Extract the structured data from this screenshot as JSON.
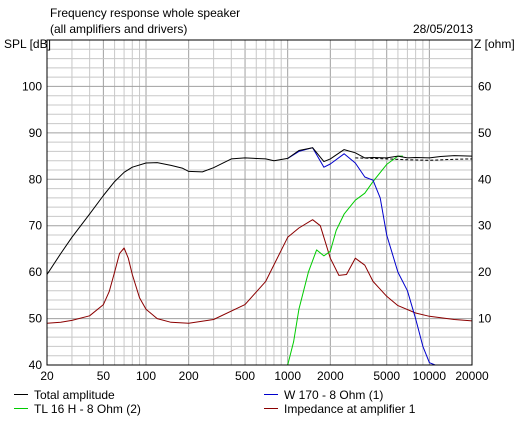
{
  "chart_data": {
    "type": "line",
    "title": "Frequency response whole speaker",
    "subtitle": "(all amplifiers and drivers)",
    "date": "28/05/2013",
    "ylabel_left": "SPL [dB]",
    "ylabel_right": "Z [ohm]",
    "x_scale": "log",
    "xlim": [
      20,
      20000
    ],
    "ylim_left": [
      40,
      110
    ],
    "ylim_right": [
      0,
      70
    ],
    "grid": true,
    "x_ticks": [
      20,
      50,
      100,
      200,
      500,
      1000,
      2000,
      5000,
      10000,
      20000
    ],
    "x_tick_labels": [
      "20",
      "50",
      "100",
      "200",
      "500",
      "1000",
      "2000",
      "5000",
      "10000",
      "20000"
    ],
    "y_left_ticks": [
      40,
      50,
      60,
      70,
      80,
      90,
      100
    ],
    "y_right_ticks": [
      10,
      20,
      30,
      40,
      50,
      60
    ],
    "series": [
      {
        "name": "Total amplitude",
        "color": "#000000",
        "axis": "left",
        "x": [
          20,
          25,
          30,
          40,
          50,
          60,
          70,
          80,
          100,
          120,
          150,
          180,
          200,
          250,
          300,
          400,
          500,
          700,
          800,
          1000,
          1200,
          1500,
          1800,
          2000,
          2500,
          3000,
          3500,
          4000,
          5000,
          6000,
          7000,
          8000,
          10000,
          12000,
          15000,
          20000
        ],
        "values": [
          59.5,
          64,
          67.5,
          72.5,
          76.5,
          79.5,
          81.5,
          82.6,
          83.5,
          83.6,
          83,
          82.4,
          81.7,
          81.6,
          82.5,
          84.4,
          84.6,
          84.4,
          84,
          84.5,
          86.2,
          86.8,
          83.8,
          84.4,
          86.4,
          85.7,
          84.6,
          84.7,
          84.6,
          85,
          84.6,
          84.7,
          84.6,
          84.9,
          85.1,
          85
        ]
      },
      {
        "name": "W 170 - 8 Ohm (1)",
        "color": "#0000cc",
        "axis": "left",
        "x": [
          1000,
          1200,
          1500,
          1800,
          2000,
          2500,
          3000,
          3500,
          4000,
          4500,
          5000,
          6000,
          7000,
          8000,
          9000,
          10000,
          11000,
          12000
        ],
        "values": [
          84.5,
          86,
          86.8,
          82.6,
          83.3,
          85.5,
          83.5,
          80.5,
          79.8,
          76,
          68,
          60,
          56,
          50,
          44,
          40.5,
          40,
          40
        ]
      },
      {
        "name": "TL 16 H - 8 Ohm (2)",
        "color": "#00cc00",
        "axis": "left",
        "x": [
          20,
          500,
          900,
          1000,
          1100,
          1200,
          1400,
          1600,
          1800,
          2000,
          2200,
          2500,
          3000,
          3500,
          4000,
          5000,
          6000,
          6500
        ],
        "values": [
          40,
          40,
          40,
          40,
          45,
          52,
          60,
          64.8,
          63.5,
          64.5,
          69,
          72.5,
          75.5,
          77,
          79.5,
          83.2,
          85,
          85
        ]
      },
      {
        "name": "Impedance at amplifier 1",
        "color": "#8b0000",
        "axis": "right",
        "x": [
          20,
          25,
          30,
          40,
          50,
          55,
          60,
          65,
          70,
          75,
          80,
          90,
          100,
          120,
          150,
          200,
          300,
          500,
          700,
          1000,
          1200,
          1500,
          1700,
          2000,
          2300,
          2600,
          3000,
          3500,
          4000,
          5000,
          6000,
          8000,
          10000,
          15000,
          20000
        ],
        "values": [
          9,
          9.2,
          9.6,
          10.6,
          13,
          15.8,
          20,
          24,
          25.2,
          23,
          19.5,
          14.5,
          12,
          10,
          9.2,
          9,
          9.8,
          13,
          18,
          27.5,
          29.5,
          31.3,
          30,
          23,
          19.3,
          19.5,
          23,
          21.5,
          18,
          14.8,
          12.8,
          11.2,
          10.5,
          9.8,
          9.5
        ]
      },
      {
        "name": "",
        "color": "#000000",
        "axis": "left",
        "dashed": true,
        "x": [
          3000,
          4000,
          5000,
          7000,
          10000,
          15000,
          20000
        ],
        "values": [
          84.6,
          84.5,
          84.4,
          84.2,
          84.1,
          84.3,
          84.4
        ]
      }
    ]
  }
}
